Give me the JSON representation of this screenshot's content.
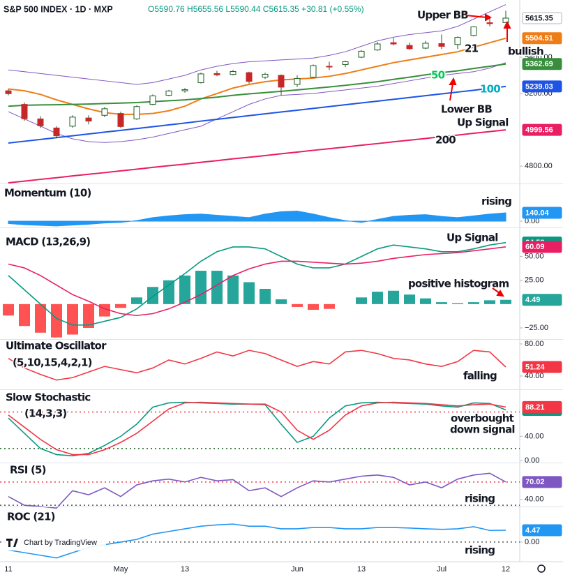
{
  "header": {
    "title": "S&P 500 INDEX · 1D · MXP",
    "ohlc": "O5590.76 H5655.56 L5590.44 C5615.35 +30.81 (+0.55%)"
  },
  "watermark": "Chart by TradingView",
  "chart_data": [
    {
      "type": "candlestick",
      "categories": [
        "11",
        null,
        null,
        null,
        null,
        null,
        null,
        "May",
        null,
        null,
        null,
        "13",
        null,
        null,
        null,
        null,
        null,
        null,
        "Jun",
        null,
        null,
        null,
        "13",
        null,
        null,
        null,
        null,
        "Jul",
        null,
        null,
        null,
        "12"
      ],
      "ylim": [
        4708,
        5696
      ],
      "yticks": [
        {
          "value": 4800,
          "label": "4800.00"
        },
        {
          "value": 5200,
          "label": "5200.00"
        },
        {
          "value": 5400,
          "label": "5400.00"
        }
      ],
      "open": [
        5215,
        5140,
        5060,
        5010,
        5020,
        5065,
        5080,
        5090,
        5060,
        5140,
        5190,
        5215,
        5260,
        5310,
        5305,
        5315,
        5290,
        5300,
        5250,
        5290,
        5350,
        5360,
        5400,
        5440,
        5480,
        5465,
        5450,
        5475,
        5470,
        5520,
        5590,
        5590.76
      ],
      "high": [
        5225,
        5150,
        5075,
        5020,
        5080,
        5080,
        5125,
        5100,
        5135,
        5195,
        5220,
        5230,
        5315,
        5325,
        5330,
        5320,
        5315,
        5305,
        5300,
        5360,
        5375,
        5380,
        5440,
        5485,
        5505,
        5480,
        5490,
        5525,
        5515,
        5570,
        5625,
        5655.56
      ],
      "low": [
        5190,
        5050,
        5010,
        4953,
        5011,
        5030,
        5070,
        5010,
        5055,
        5135,
        5185,
        5205,
        5255,
        5295,
        5300,
        5255,
        5280,
        5190,
        5235,
        5285,
        5330,
        5345,
        5395,
        5435,
        5465,
        5440,
        5445,
        5445,
        5445,
        5515,
        5570,
        5590.44
      ],
      "close": [
        5199,
        5061,
        5022,
        4967,
        5070,
        5048,
        5116,
        5018,
        5128,
        5187,
        5214,
        5221,
        5308,
        5303,
        5321,
        5267,
        5306,
        5235,
        5283,
        5354,
        5346,
        5375,
        5433,
        5473,
        5473,
        5447,
        5477,
        5460,
        5509,
        5567,
        5585,
        5615.35
      ],
      "up_color": "#ffffff",
      "down_color": "#c62828",
      "border_color": "#1b5e20",
      "series": [
        {
          "color": "#7e57c2",
          "values": [
            5330,
            5320,
            5310,
            5300,
            5290,
            5280,
            5270,
            5260,
            5250,
            5260,
            5280,
            5300,
            5330,
            5350,
            5365,
            5375,
            5380,
            5385,
            5390,
            5395,
            5410,
            5430,
            5460,
            5490,
            5510,
            5525,
            5535,
            5545,
            5570,
            5610,
            5650,
            5690
          ]
        },
        {
          "color": "#7e57c2",
          "values": [
            5100,
            5060,
            5020,
            4980,
            4950,
            4935,
            4930,
            4935,
            4945,
            4960,
            4980,
            5000,
            5020,
            5060,
            5100,
            5140,
            5170,
            5190,
            5195,
            5200,
            5210,
            5220,
            5230,
            5240,
            5255,
            5270,
            5285,
            5300,
            5310,
            5320,
            5340,
            5370
          ]
        },
        {
          "color": "#ef7d16",
          "last_label": true,
          "values": [
            5225,
            5215,
            5195,
            5165,
            5140,
            5115,
            5095,
            5085,
            5085,
            5090,
            5105,
            5130,
            5170,
            5200,
            5230,
            5250,
            5265,
            5275,
            5280,
            5285,
            5295,
            5310,
            5330,
            5350,
            5370,
            5385,
            5400,
            5415,
            5430,
            5455,
            5480,
            5504.51
          ]
        },
        {
          "color": "#388e3c",
          "last_label": true,
          "values": [
            5130,
            5135,
            5137,
            5138,
            5140,
            5142,
            5145,
            5147,
            5150,
            5155,
            5160,
            5165,
            5172,
            5180,
            5190,
            5198,
            5205,
            5212,
            5220,
            5228,
            5236,
            5245,
            5255,
            5265,
            5278,
            5290,
            5303,
            5315,
            5325,
            5338,
            5350,
            5362.69
          ]
        },
        {
          "color": "#1e53e5",
          "last_label": true,
          "values": [
            4927,
            4937,
            4947,
            4957,
            4967,
            4977,
            4987,
            4997,
            5007,
            5017,
            5027,
            5037,
            5048,
            5058,
            5068,
            5078,
            5088,
            5098,
            5108,
            5118,
            5128,
            5138,
            5148,
            5158,
            5168,
            5178,
            5188,
            5198,
            5208,
            5218,
            5229,
            5239.03
          ]
        },
        {
          "color": "#e91e63",
          "last_label": true,
          "values": [
            4708,
            4717,
            4727,
            4736,
            4746,
            4755,
            4764,
            4774,
            4783,
            4793,
            4802,
            4811,
            4821,
            4830,
            4840,
            4849,
            4858,
            4868,
            4877,
            4887,
            4896,
            4905,
            4915,
            4924,
            4934,
            4943,
            4952,
            4962,
            4971,
            4981,
            4990,
            4999.56
          ]
        }
      ],
      "annotations": [
        {
          "text": "Upper BB",
          "color": "#131722"
        },
        {
          "text": "21",
          "color": "#131722"
        },
        {
          "text": "bullish",
          "color": "#131722"
        },
        {
          "text": "50",
          "color": "#00c853"
        },
        {
          "text": "100",
          "color": "#00acc1"
        },
        {
          "text": "Lower BB",
          "color": "#131722"
        },
        {
          "text": "Up Signal",
          "color": "#131722"
        },
        {
          "text": "200",
          "color": "#131722"
        }
      ]
    },
    {
      "type": "area",
      "ylim": [
        -93,
        607
      ],
      "yticks": [
        {
          "value": 0,
          "label": "0.00"
        }
      ],
      "series": [
        {
          "color": "#2196f3",
          "last_label": true,
          "values": [
            -40,
            -60,
            -70,
            -80,
            -65,
            -50,
            -30,
            -20,
            10,
            60,
            90,
            110,
            120,
            100,
            80,
            60,
            120,
            160,
            170,
            120,
            60,
            10,
            -20,
            30,
            80,
            100,
            110,
            80,
            60,
            90,
            120,
            140.04
          ]
        }
      ],
      "annotations": [
        {
          "text": "Momentum (10)",
          "color": "#131722"
        },
        {
          "text": "rising",
          "color": "#131722"
        }
      ]
    },
    {
      "type": "line",
      "ylim": [
        -36,
        79
      ],
      "yticks": [
        {
          "value": 50,
          "label": "50.00"
        },
        {
          "value": 25,
          "label": "25.00"
        },
        {
          "value": -25,
          "label": "−25.00"
        }
      ],
      "series": [
        {
          "type": "histogram",
          "color": "#26a69a",
          "negative_color": "#ff5252",
          "last_label": true,
          "values": [
            -12,
            -23,
            -30,
            -35,
            -32,
            -25,
            -13,
            -4,
            7,
            18,
            25,
            30,
            35,
            35,
            30,
            23,
            16,
            5,
            -3,
            -6,
            -5,
            0,
            7,
            13,
            14,
            10,
            6,
            2,
            1,
            2,
            4,
            4.49
          ]
        },
        {
          "color": "#089981",
          "last_label": true,
          "values": [
            30,
            15,
            0,
            -15,
            -22,
            -22,
            -18,
            -14,
            -5,
            8,
            20,
            32,
            45,
            55,
            60,
            60,
            58,
            50,
            42,
            38,
            38,
            42,
            50,
            58,
            62,
            60,
            58,
            55,
            55,
            58,
            62,
            64.58
          ]
        },
        {
          "color": "#e91e63",
          "last_label": true,
          "values": [
            42,
            38,
            30,
            20,
            10,
            3,
            -5,
            -10,
            -12,
            -10,
            -5,
            2,
            10,
            20,
            30,
            37,
            42,
            45,
            45,
            44,
            43,
            42,
            43,
            45,
            48,
            50,
            52,
            53,
            54,
            56,
            58,
            60.09
          ]
        }
      ],
      "annotations": [
        {
          "text": "MACD (13,26,9)",
          "color": "#131722"
        },
        {
          "text": "Up Signal",
          "color": "#131722"
        },
        {
          "text": "positive histogram",
          "color": "#131722"
        }
      ]
    },
    {
      "type": "line",
      "ylim": [
        24.3,
        84.3
      ],
      "yticks": [
        {
          "value": 80,
          "label": "80.00"
        },
        {
          "value": 40,
          "label": "40.00"
        }
      ],
      "series": [
        {
          "color": "#f23645",
          "last_label": true,
          "values": [
            62,
            50,
            42,
            35,
            38,
            45,
            52,
            48,
            44,
            50,
            60,
            55,
            62,
            70,
            65,
            72,
            68,
            60,
            52,
            58,
            55,
            70,
            72,
            68,
            62,
            60,
            55,
            52,
            58,
            72,
            70,
            51.24
          ]
        }
      ],
      "annotations": [
        {
          "text": "Ultimate Oscillator",
          "color": "#131722"
        },
        {
          "text": "(5,10,15,4,2,1)",
          "color": "#131722"
        },
        {
          "text": "falling",
          "color": "#131722"
        }
      ]
    },
    {
      "type": "line",
      "ylim": [
        -2,
        115
      ],
      "yticks": [
        {
          "value": 40,
          "label": "40.00"
        },
        {
          "value": 0,
          "label": "0.00"
        }
      ],
      "levels": [
        {
          "value": 80,
          "color": "#f23645"
        },
        {
          "value": 20,
          "color": "#1b5e20"
        }
      ],
      "series": [
        {
          "color": "#089981",
          "last_label": true,
          "values": [
            70,
            45,
            20,
            10,
            8,
            12,
            25,
            40,
            60,
            88,
            95,
            96,
            95,
            94,
            93,
            93,
            92,
            60,
            30,
            40,
            70,
            90,
            95,
            96,
            95,
            94,
            93,
            90,
            88,
            95,
            94,
            83.47
          ]
        },
        {
          "color": "#f23645",
          "last_label": true,
          "values": [
            75,
            55,
            35,
            18,
            10,
            10,
            18,
            30,
            45,
            65,
            85,
            95,
            96,
            95,
            94,
            93,
            93,
            80,
            50,
            35,
            50,
            75,
            90,
            95,
            96,
            95,
            94,
            92,
            90,
            92,
            93,
            88.21
          ]
        }
      ],
      "annotations": [
        {
          "text": "Slow Stochastic",
          "color": "#131722"
        },
        {
          "text": "(14,3,3)",
          "color": "#131722"
        },
        {
          "text": "overbought",
          "color": "#131722"
        },
        {
          "text": "down signal",
          "color": "#131722"
        }
      ]
    },
    {
      "type": "line",
      "ylim": [
        29,
        101
      ],
      "yticks": [
        {
          "value": 40,
          "label": "40.00"
        }
      ],
      "levels": [
        {
          "value": 70,
          "color": "#f23645"
        },
        {
          "value": 30,
          "color": "#555555"
        }
      ],
      "series": [
        {
          "color": "#7e57c2",
          "last_label": true,
          "values": [
            45,
            30,
            28,
            25,
            55,
            48,
            60,
            45,
            65,
            72,
            75,
            70,
            78,
            72,
            74,
            55,
            60,
            45,
            60,
            72,
            70,
            75,
            80,
            82,
            78,
            65,
            70,
            60,
            75,
            82,
            85,
            70.02
          ]
        }
      ],
      "annotations": [
        {
          "text": "RSI (5)",
          "color": "#131722"
        },
        {
          "text": "rising",
          "color": "#131722"
        }
      ]
    },
    {
      "type": "line",
      "ylim": [
        -7.4,
        12.9
      ],
      "yticks": [
        {
          "value": 0,
          "label": "0.00"
        }
      ],
      "levels": [
        {
          "value": 0,
          "color": "#555555"
        }
      ],
      "series": [
        {
          "color": "#2196f3",
          "last_label": true,
          "values": [
            -3,
            -4,
            -5,
            -6,
            -4,
            -2,
            -1,
            0,
            1,
            3,
            4,
            5,
            6,
            6.5,
            6.8,
            6,
            6,
            5,
            5,
            5.5,
            5.5,
            5,
            5,
            5.5,
            5.5,
            5.3,
            5,
            4.8,
            5,
            5.8,
            4.4,
            4.47
          ]
        }
      ],
      "annotations": [
        {
          "text": "ROC (21)",
          "color": "#131722"
        },
        {
          "text": "rising",
          "color": "#131722"
        }
      ]
    }
  ]
}
